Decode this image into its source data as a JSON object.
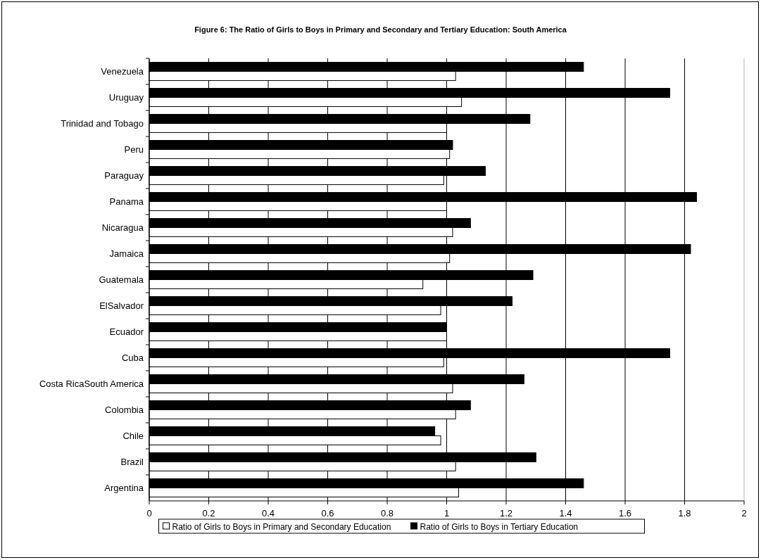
{
  "chart_data": {
    "type": "bar",
    "orientation": "horizontal",
    "title": "Figure 6:  The Ratio of Girls to Boys in Primary and Secondary and Tertiary Education: South America",
    "categories": [
      "Venezuela",
      "Uruguay",
      "Trinidad and Tobago",
      "Peru",
      "Paraguay",
      "Panama",
      "Nicaragua",
      "Jamaica",
      "Guatemala",
      "ElSalvador",
      "Ecuador",
      "Cuba",
      "Costa RicaSouth America",
      "Colombia",
      "Chile",
      "Brazil",
      "Argentina"
    ],
    "series": [
      {
        "name": "Ratio of Girls to Boys in Primary and Secondary Education",
        "color": "#ffffff",
        "values": [
          1.03,
          1.05,
          1.0,
          1.01,
          0.99,
          1.0,
          1.02,
          1.01,
          0.92,
          0.98,
          1.0,
          0.99,
          1.02,
          1.03,
          0.98,
          1.03,
          1.04
        ]
      },
      {
        "name": "Ratio of Girls to Boys in Tertiary Education",
        "color": "#000000",
        "values": [
          1.46,
          1.75,
          1.28,
          1.02,
          1.13,
          1.84,
          1.08,
          1.82,
          1.29,
          1.22,
          1.0,
          1.75,
          1.26,
          1.08,
          0.96,
          1.3,
          1.46
        ]
      }
    ],
    "xlim": [
      0,
      2
    ],
    "xticks": [
      0,
      0.2,
      0.4,
      0.6,
      0.8,
      1,
      1.2,
      1.4,
      1.6,
      1.8,
      2
    ],
    "grid": "x",
    "legend": "bottom"
  }
}
